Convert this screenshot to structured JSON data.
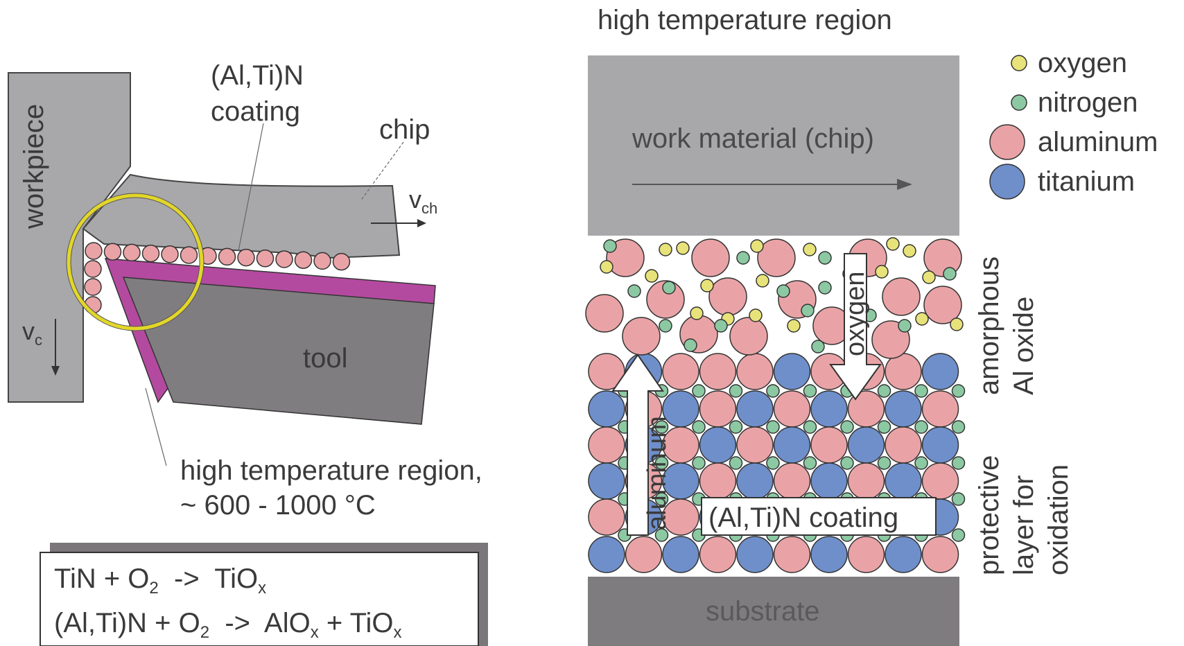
{
  "left_panel": {
    "workpiece_label": "workpiece",
    "coating_label_line1": "(Al,Ti)N",
    "coating_label_line2": "coating",
    "chip_label": "chip",
    "vch_label": "v",
    "vch_sub": "ch",
    "vc_label": "v",
    "vc_sub": "c",
    "tool_label": "tool",
    "htr_line1": "high temperature region,",
    "htr_line2": "~ 600 - 1000 °C",
    "reaction1": {
      "a": "TiN + O",
      "a_sub": "2",
      "arrow": "  ->  ",
      "b": "TiO",
      "b_sub": "x"
    },
    "reaction2": {
      "a": "(Al,Ti)N + O",
      "a_sub": "2",
      "arrow": "  ->  ",
      "b": "AlO",
      "b_sub": "x",
      "c": " + TiO",
      "c_sub": "x"
    }
  },
  "right_panel": {
    "title": "high temperature region",
    "work_material_label": "work material (chip)",
    "substrate_label": "substrate",
    "oxygen_arrow_label": "oxygen",
    "aluminum_arrow_label": "aluminum",
    "coating_label": "(Al,Ti)N coating",
    "side_label_top_line1": "amorphous",
    "side_label_top_line2": "Al oxide",
    "side_label_bottom_line1": "protective",
    "side_label_bottom_line2": "layer for",
    "side_label_bottom_line3": "oxidation",
    "legend": [
      {
        "name": "oxygen",
        "color": "#e8e27a",
        "size": "small"
      },
      {
        "name": "nitrogen",
        "color": "#8cc9a3",
        "size": "small"
      },
      {
        "name": "aluminum",
        "color": "#e9a3a6",
        "size": "large"
      },
      {
        "name": "titanium",
        "color": "#6f8fcb",
        "size": "large"
      }
    ]
  },
  "colors": {
    "gray_block": "#a8a8aa",
    "tool_gray": "#807d80",
    "magenta": "#b44aa0",
    "yellow_circle": "#e2d62a",
    "aluminum": "#e9a3a6",
    "titanium": "#6f8fcb",
    "oxygen": "#e8e27a",
    "nitrogen": "#8cc9a3"
  }
}
